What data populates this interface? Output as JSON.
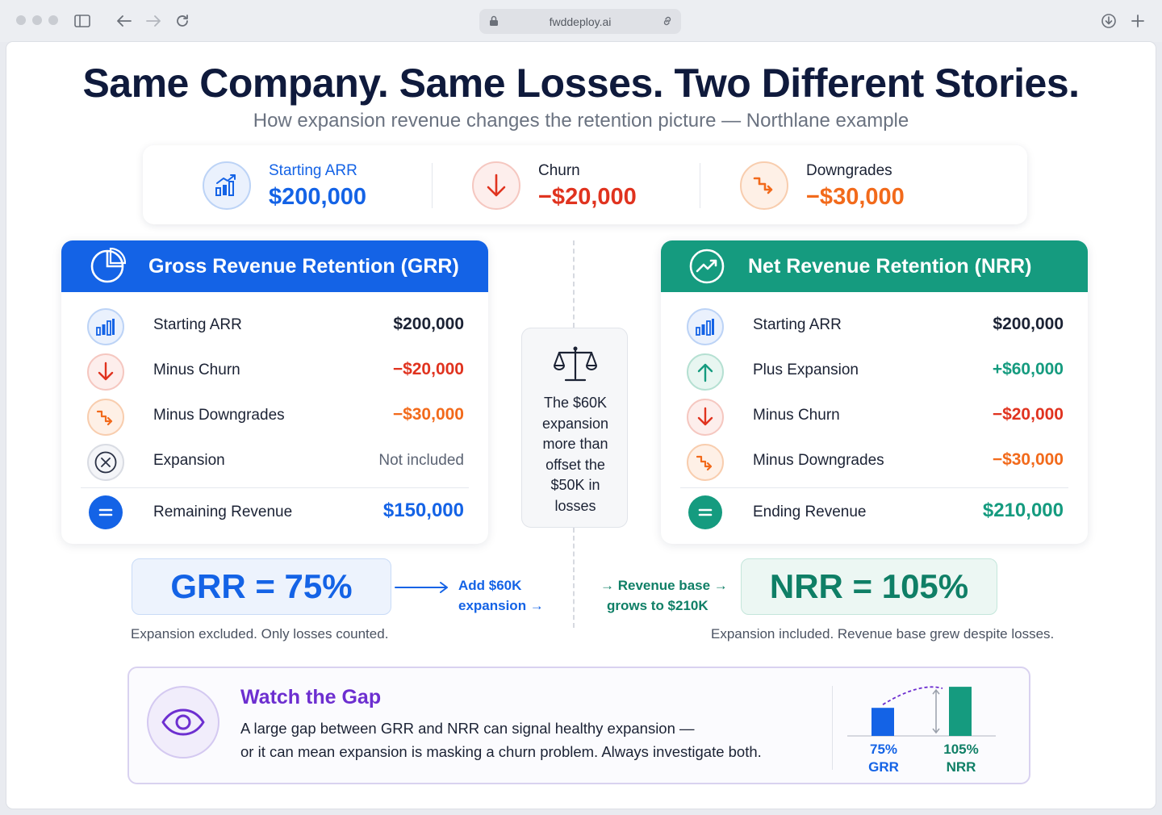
{
  "browser": {
    "url": "fwddeploy.ai"
  },
  "page": {
    "title": "Same Company. Same Losses. Two Different Stories.",
    "subtitle": "How expansion revenue changes the retention picture — Northlane example"
  },
  "summary": [
    {
      "label": "Starting ARR",
      "value": "$200,000",
      "icon": "bar-chart-icon",
      "color": "#1463e6"
    },
    {
      "label": "Churn",
      "value": "−$20,000",
      "icon": "arrow-down-icon",
      "color": "#e0331f"
    },
    {
      "label": "Downgrades",
      "value": "−$30,000",
      "icon": "step-down-icon",
      "color": "#f26a1b"
    }
  ],
  "grr": {
    "heading": "Gross Revenue Retention (GRR)",
    "rows": [
      {
        "label": "Starting ARR",
        "value": "$200,000"
      },
      {
        "label": "Minus Churn",
        "value": "−$20,000"
      },
      {
        "label": "Minus Downgrades",
        "value": "−$30,000"
      },
      {
        "label": "Expansion",
        "value": "Not included"
      }
    ],
    "total": {
      "label": "Remaining Revenue",
      "value": "$150,000"
    },
    "result": "GRR = 75%",
    "note": "Expansion excluded. Only losses counted."
  },
  "nrr": {
    "heading": "Net Revenue Retention (NRR)",
    "rows": [
      {
        "label": "Starting ARR",
        "value": "$200,000"
      },
      {
        "label": "Plus Expansion",
        "value": "+$60,000"
      },
      {
        "label": "Minus Churn",
        "value": "−$20,000"
      },
      {
        "label": "Minus Downgrades",
        "value": "−$30,000"
      }
    ],
    "total": {
      "label": "Ending Revenue",
      "value": "$210,000"
    },
    "result": "NRR = 105%",
    "note": "Expansion included. Revenue base grew despite losses."
  },
  "center": {
    "lines": [
      "The $60K",
      "expansion",
      "more than",
      "offset the",
      "$50K in",
      "losses"
    ]
  },
  "flows": {
    "grr_line1": "Add $60K",
    "grr_line2": "expansion →",
    "nrr_line1": "→ Revenue base →",
    "nrr_line2": "grows to $210K"
  },
  "gap": {
    "title": "Watch the Gap",
    "line1": "A large gap between GRR and NRR can signal healthy expansion —",
    "line2": "or it can mean expansion is masking a churn problem. Always investigate both.",
    "bars": [
      {
        "pct": "75%",
        "name": "GRR",
        "value": 75,
        "color": "#1463e6"
      },
      {
        "pct": "105%",
        "name": "NRR",
        "value": 105,
        "color": "#159b7f"
      }
    ]
  },
  "colors": {
    "blue": "#1463e6",
    "green": "#159b7f",
    "red": "#e0331f",
    "orange": "#f26a1b",
    "purple": "#6d2fd0"
  }
}
